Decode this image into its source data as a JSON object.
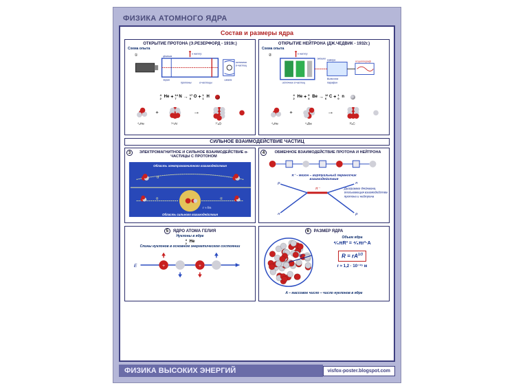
{
  "header": {
    "title": "ФИЗИКА АТОМНОГО ЯДРА"
  },
  "main_title": "Состав и размеры ядра",
  "panels": {
    "p1": {
      "num": "1",
      "title": "ОТКРЫТИЕ ПРОТОНА (Э.РЕЗЕРФОРД - 1919г.)",
      "scheme_label": "Схема опыта",
      "labels": {
        "pump": "к насосу",
        "foil": "фольга",
        "screen": "экран",
        "src": "источник α-частиц",
        "protons": "протоны",
        "alpha": "α - частицы",
        "scale": "шкала"
      },
      "reaction": [
        {
          "a": "4",
          "z": "2",
          "sym": "He"
        },
        {
          "a": "14",
          "z": "7",
          "sym": "N"
        },
        {
          "a": "17",
          "z": "8",
          "sym": "O"
        },
        {
          "a": "1",
          "z": "1",
          "sym": "H"
        }
      ],
      "below": [
        {
          "a": "4",
          "z": "2",
          "sym": "He"
        },
        {
          "a": "14",
          "z": "7",
          "sym": "N"
        },
        {
          "a": "17",
          "z": "8",
          "sym": "O"
        }
      ]
    },
    "p2": {
      "num": "2",
      "title": "ОТКРЫТИЕ НЕЙТРОНА (ДЖ.ЧЕДВИК - 1932г.)",
      "scheme_label": "Схема опыта",
      "labels": {
        "pump": "к насосу",
        "window": "окошко",
        "chamber": "камера Вильсона",
        "osc": "осциллограф",
        "src": "источник α-частиц",
        "paraffin": "парафин"
      },
      "reaction": [
        {
          "a": "4",
          "z": "2",
          "sym": "He"
        },
        {
          "a": "9",
          "z": "4",
          "sym": "Be"
        },
        {
          "a": "12",
          "z": "6",
          "sym": "C"
        },
        {
          "a": "1",
          "z": "0",
          "sym": "n"
        }
      ],
      "below": [
        {
          "a": "4",
          "z": "2",
          "sym": "He"
        },
        {
          "a": "9",
          "z": "4",
          "sym": "Be"
        },
        {
          "a": "12",
          "z": "6",
          "sym": "C"
        }
      ]
    },
    "strong_banner": "СИЛЬНОЕ ВЗАИМОДЕЙСТВИЕ ЧАСТИЦ",
    "p3": {
      "num": "3",
      "title": "ЭЛЕКТРОМАГНИТНОЕ И СИЛЬНОЕ ВЗАИМОДЕЙСТВИЕ α-ЧАСТИЦЫ С ПРОТОНОМ",
      "region_em": "Область электромагнитного взаимодействия",
      "region_strong": "Область сильного взаимодействия",
      "alpha": "α",
      "radius": "r ≈ fm"
    },
    "p4": {
      "num": "4",
      "title": "ОБМЕННОЕ ВЗАИМОДЕЙСТВИЕ ПРОТОНА И НЕЙТРОНА",
      "meson": "π⁻ - мезон – виртуальный переносчик взаимодействия",
      "feynman": "Диаграмма Фейнмана, описывающая взаимодействие протона и нейтрона",
      "n_label": "n",
      "p_label": "p",
      "pi_label": "π⁻"
    },
    "p5": {
      "num": "5",
      "title": "ЯДРО АТОМА ГЕЛИЯ",
      "top": "Нуклоны в ядре",
      "he": {
        "a": "4",
        "z": "2",
        "sym": "He"
      },
      "spin_caption": "Спины нуклонов в основном энергетическом состоянии",
      "E_label": "E"
    },
    "p6": {
      "num": "6",
      "title": "РАЗМЕР ЯДРА",
      "volume_label": "Объем ядра",
      "volume_formula": "⁴⁄₃πR³ = ⁴⁄₃πr³·A",
      "box_formula": "R = rA",
      "box_exp": "1/3",
      "r_value": "r ≈ 1,2 · 10⁻¹⁵ м",
      "A_note": "A – массовое число – число нуклонов в ядре"
    }
  },
  "footer": {
    "title": "ФИЗИКА ВЫСОКИХ ЭНЕРГИЙ",
    "url": "visfox-poster.blogspot.com"
  },
  "colors": {
    "red": "#c82020",
    "blue": "#2a4cc0",
    "silver": "#d0d0d8",
    "darkblue": "#08208a",
    "yellow": "#f8d050",
    "green": "#2a9a4a",
    "frame": "#2a2c6a",
    "bg_blue": "#2848b8"
  }
}
